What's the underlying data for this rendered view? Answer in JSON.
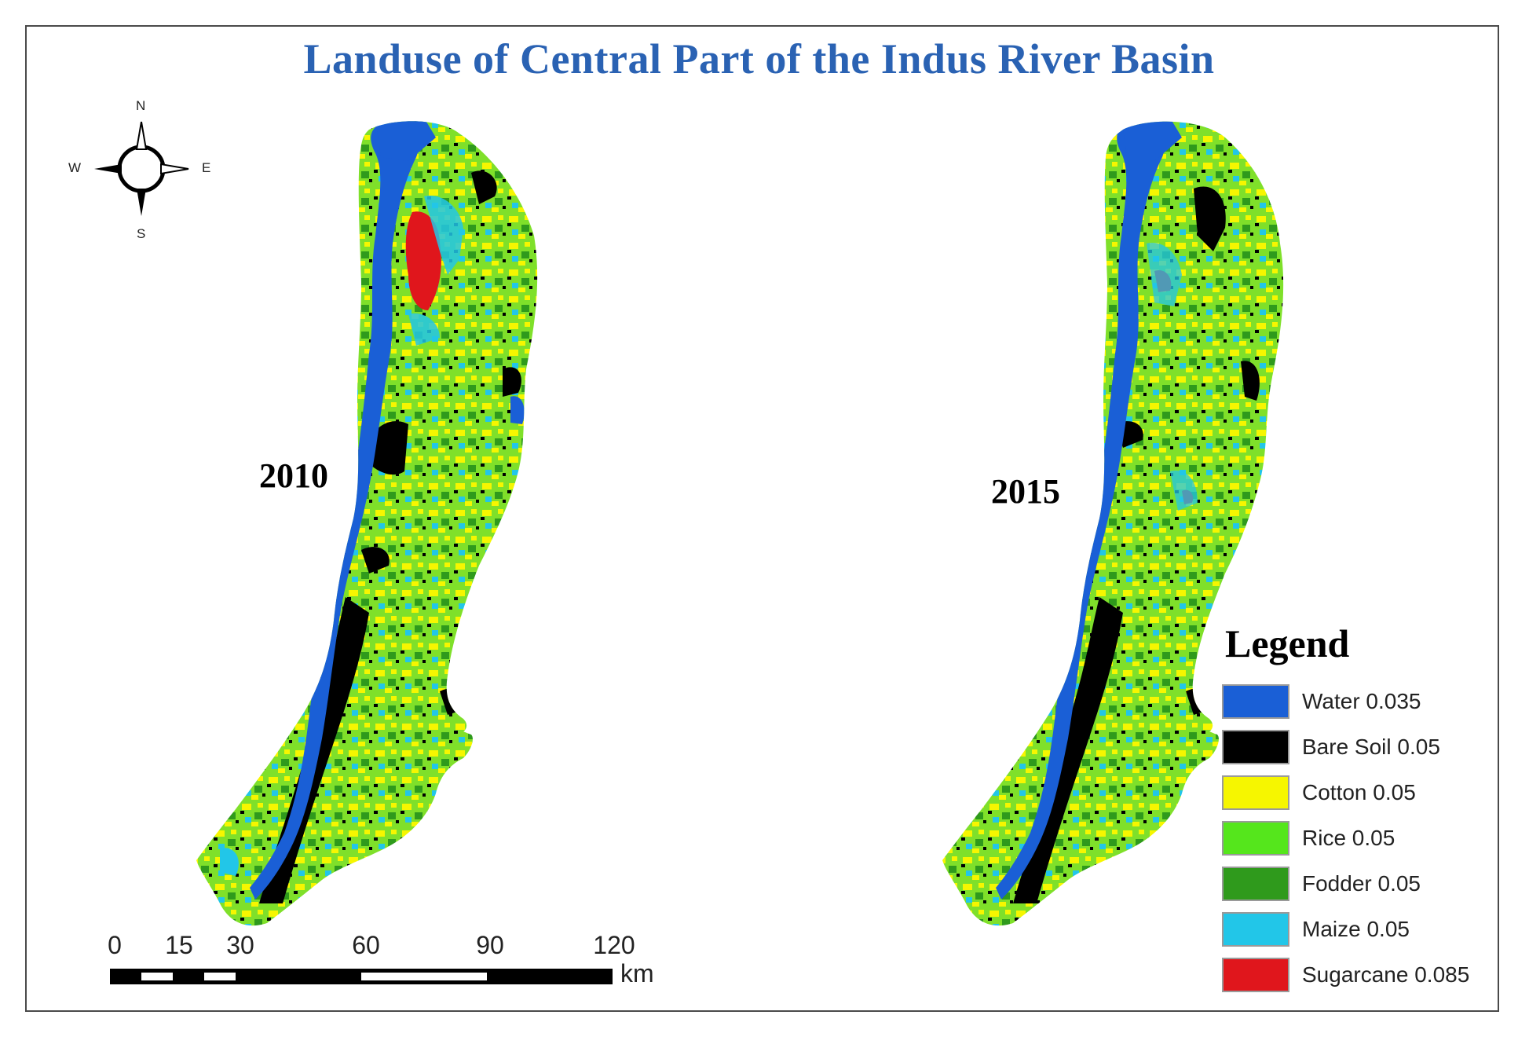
{
  "title": "Landuse of Central Part of the Indus River Basin",
  "maps": [
    {
      "year": "2010"
    },
    {
      "year": "2015"
    }
  ],
  "compass": {
    "n": "N",
    "s": "S",
    "e": "E",
    "w": "W"
  },
  "legend": {
    "title": "Legend",
    "items": [
      {
        "label": "Water 0.035",
        "color": "#1a5fd6"
      },
      {
        "label": "Bare Soil 0.05",
        "color": "#000000"
      },
      {
        "label": "Cotton 0.05",
        "color": "#f6f600"
      },
      {
        "label": "Rice 0.05",
        "color": "#55e61c"
      },
      {
        "label": "Fodder 0.05",
        "color": "#2f9a1c"
      },
      {
        "label": "Maize 0.05",
        "color": "#22c6e8"
      },
      {
        "label": "Sugarcane 0.085",
        "color": "#e0161c"
      }
    ]
  },
  "scale": {
    "ticks": [
      "0",
      "15",
      "30",
      "60",
      "90",
      "120"
    ],
    "unit": "km"
  }
}
